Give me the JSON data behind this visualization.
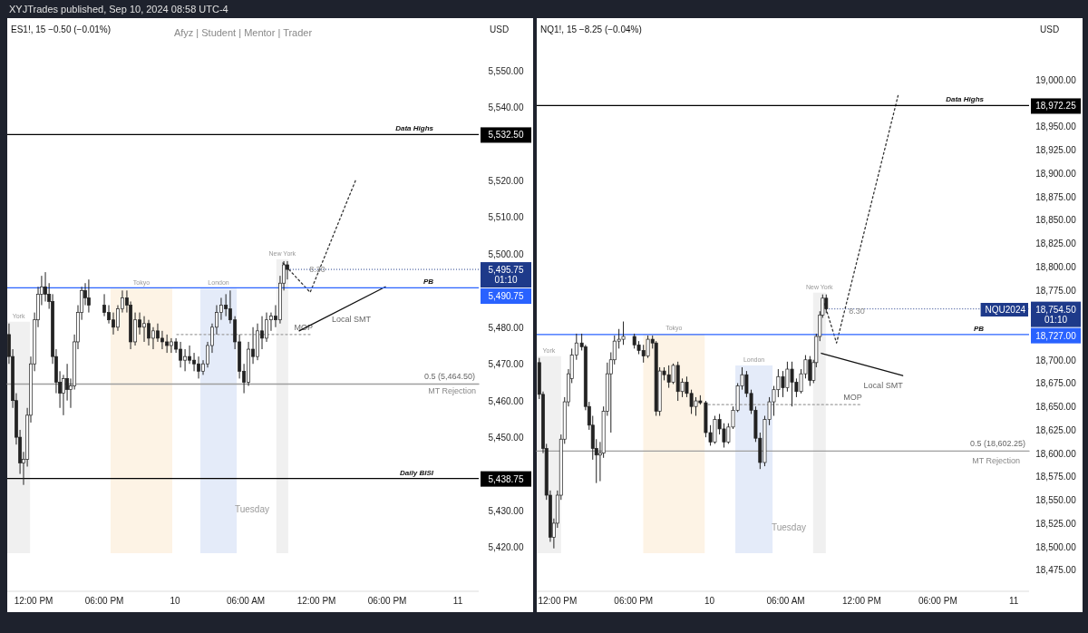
{
  "chart_data": [
    {
      "type": "candlestick",
      "title": "ES1!, 15  −0.50 (−0.01%)",
      "subtitle": "Afyz | Student | Mentor | Trader",
      "ylabel": "USD",
      "xlim": [
        "2024-09-09T09:46",
        "2024-09-11T01:46"
      ],
      "ylim": [
        5408.5,
        5563.75
      ],
      "xticks": [
        {
          "value": "2024-09-09T12:00",
          "label": "12:00 PM"
        },
        {
          "value": "2024-09-09T18:00",
          "label": "06:00 PM"
        },
        {
          "value": "2024-09-10T00:00",
          "label": "10"
        },
        {
          "value": "2024-09-10T06:00",
          "label": "06:00 AM"
        },
        {
          "value": "2024-09-10T12:00",
          "label": "12:00 PM"
        },
        {
          "value": "2024-09-10T18:00",
          "label": "06:00 PM"
        },
        {
          "value": "2024-09-11T00:00",
          "label": "11"
        }
      ],
      "yticks": [
        {
          "value": 5420,
          "label": "5,420.00"
        },
        {
          "value": 5430,
          "label": "5,430.00"
        },
        {
          "value": 5450,
          "label": "5,450.00"
        },
        {
          "value": 5460,
          "label": "5,460.00"
        },
        {
          "value": 5470,
          "label": "5,470.00"
        },
        {
          "value": 5480,
          "label": "5,480.00"
        },
        {
          "value": 5500,
          "label": "5,500.00"
        },
        {
          "value": 5510,
          "label": "5,510.00"
        },
        {
          "value": 5520,
          "label": "5,520.00"
        },
        {
          "value": 5540,
          "label": "5,540.00"
        },
        {
          "value": 5550,
          "label": "5,550.00"
        }
      ],
      "x": [
        "2024-09-09T09:55",
        "2024-09-09T10:14",
        "2024-09-09T10:32",
        "2024-09-09T10:51",
        "2024-09-09T11:09",
        "2024-09-09T11:28",
        "2024-09-09T11:46",
        "2024-09-09T12:05",
        "2024-09-09T12:23",
        "2024-09-09T12:41",
        "2024-09-09T13:00",
        "2024-09-09T13:19",
        "2024-09-09T13:37",
        "2024-09-09T13:55",
        "2024-09-09T14:14",
        "2024-09-09T14:32",
        "2024-09-09T14:51",
        "2024-09-09T15:09",
        "2024-09-09T15:28",
        "2024-09-09T15:46",
        "2024-09-09T16:05",
        "2024-09-09T16:23",
        "2024-09-09T16:41",
        "2024-09-09T18:00",
        "2024-09-09T18:23",
        "2024-09-09T18:46",
        "2024-09-09T19:09",
        "2024-09-09T19:32",
        "2024-09-09T19:55",
        "2024-09-09T20:14",
        "2024-09-09T20:37",
        "2024-09-09T21:00",
        "2024-09-09T21:23",
        "2024-09-09T21:46",
        "2024-09-09T22:09",
        "2024-09-09T22:32",
        "2024-09-09T22:55",
        "2024-09-09T23:19",
        "2024-09-09T23:41",
        "2024-09-10T00:05",
        "2024-09-10T00:28",
        "2024-09-10T00:51",
        "2024-09-10T01:14",
        "2024-09-10T01:37",
        "2024-09-10T02:00",
        "2024-09-10T02:23",
        "2024-09-10T02:46",
        "2024-09-10T03:09",
        "2024-09-10T03:32",
        "2024-09-10T03:55",
        "2024-09-10T04:19",
        "2024-09-10T04:41",
        "2024-09-10T05:05",
        "2024-09-10T05:28",
        "2024-09-10T05:51",
        "2024-09-10T06:14",
        "2024-09-10T06:37",
        "2024-09-10T07:00",
        "2024-09-10T07:23",
        "2024-09-10T07:46",
        "2024-09-10T08:09",
        "2024-09-10T08:32",
        "2024-09-10T08:55",
        "2024-09-10T09:14",
        "2024-09-10T09:32"
      ],
      "ohlc": [
        [
          5478,
          5481,
          5470,
          5472
        ],
        [
          5472,
          5474,
          5458,
          5460
        ],
        [
          5460,
          5462,
          5448,
          5450
        ],
        [
          5450,
          5452,
          5440,
          5443
        ],
        [
          5443,
          5446,
          5437,
          5444
        ],
        [
          5444,
          5458,
          5442,
          5456
        ],
        [
          5456,
          5472,
          5454,
          5470
        ],
        [
          5470,
          5484,
          5468,
          5482
        ],
        [
          5482,
          5491,
          5480,
          5489
        ],
        [
          5489,
          5494,
          5486,
          5491
        ],
        [
          5491,
          5495,
          5487,
          5489
        ],
        [
          5489,
          5492,
          5485,
          5487
        ],
        [
          5487,
          5489,
          5470,
          5472
        ],
        [
          5472,
          5474,
          5462,
          5465
        ],
        [
          5465,
          5468,
          5458,
          5462
        ],
        [
          5462,
          5467,
          5456,
          5466
        ],
        [
          5466,
          5470,
          5460,
          5463
        ],
        [
          5463,
          5466,
          5458,
          5464
        ],
        [
          5464,
          5478,
          5463,
          5476
        ],
        [
          5476,
          5486,
          5474,
          5484
        ],
        [
          5484,
          5491,
          5482,
          5490
        ],
        [
          5490,
          5492,
          5486,
          5488
        ],
        [
          5488,
          5493,
          5484,
          5486
        ],
        [
          5486,
          5489,
          5483,
          5484
        ],
        [
          5484,
          5486,
          5481,
          5482
        ],
        [
          5482,
          5484,
          5478,
          5480
        ],
        [
          5480,
          5486,
          5479,
          5485
        ],
        [
          5485,
          5490,
          5484,
          5488
        ],
        [
          5488,
          5490,
          5484,
          5486
        ],
        [
          5486,
          5487,
          5474,
          5476
        ],
        [
          5476,
          5484,
          5475,
          5482
        ],
        [
          5482,
          5484,
          5478,
          5480
        ],
        [
          5480,
          5483,
          5476,
          5481
        ],
        [
          5481,
          5482,
          5475,
          5477
        ],
        [
          5477,
          5480,
          5474,
          5479
        ],
        [
          5479,
          5481,
          5476,
          5477
        ],
        [
          5477,
          5479,
          5474,
          5476
        ],
        [
          5476,
          5478,
          5473,
          5475
        ],
        [
          5475,
          5477,
          5473,
          5476
        ],
        [
          5476,
          5477,
          5473,
          5474
        ],
        [
          5474,
          5476,
          5469,
          5471
        ],
        [
          5471,
          5474,
          5468,
          5472
        ],
        [
          5472,
          5475,
          5470,
          5471
        ],
        [
          5471,
          5473,
          5468,
          5470
        ],
        [
          5470,
          5472,
          5466,
          5468
        ],
        [
          5468,
          5471,
          5467,
          5470
        ],
        [
          5470,
          5476,
          5469,
          5475
        ],
        [
          5475,
          5481,
          5473,
          5480
        ],
        [
          5480,
          5486,
          5478,
          5484
        ],
        [
          5484,
          5488,
          5482,
          5486
        ],
        [
          5486,
          5489,
          5483,
          5485
        ],
        [
          5485,
          5490,
          5481,
          5482
        ],
        [
          5482,
          5483,
          5474,
          5476
        ],
        [
          5476,
          5478,
          5466,
          5468
        ],
        [
          5468,
          5470,
          5462,
          5465
        ],
        [
          5465,
          5476,
          5464,
          5474
        ],
        [
          5474,
          5480,
          5470,
          5472
        ],
        [
          5472,
          5481,
          5471,
          5479
        ],
        [
          5479,
          5483,
          5474,
          5477
        ],
        [
          5477,
          5484,
          5476,
          5482
        ],
        [
          5482,
          5484,
          5479,
          5483
        ],
        [
          5483,
          5486,
          5480,
          5482
        ],
        [
          5482,
          5494,
          5481,
          5492
        ],
        [
          5492,
          5498,
          5490,
          5497
        ],
        [
          5497,
          5498,
          5493,
          5495.75
        ]
      ],
      "series": [
        {
          "type": "line",
          "name": "0.5 (5,464.50)",
          "color": "#9e9e9e",
          "x": [
            "2024-09-09T09:46",
            "2024-09-11T01:46"
          ],
          "values": [
            5464.5,
            5464.5
          ]
        },
        {
          "type": "line",
          "name": "MOP",
          "color": "#9e9e9e",
          "line_style": "dotted",
          "x": [
            "2024-09-10T00:09",
            "2024-09-10T11:41"
          ],
          "values": [
            5478,
            5478
          ]
        },
        {
          "type": "line",
          "name": "Local SMT",
          "color": "#111111",
          "x": [
            "2024-09-10T10:32",
            "2024-09-10T17:51"
          ],
          "values": [
            5479,
            5491
          ]
        },
        {
          "type": "line",
          "color": "#333333",
          "line_style": "dotted",
          "x": [
            "2024-09-10T09:09",
            "2024-09-10T11:28",
            "2024-09-10T15:19"
          ],
          "values": [
            5497.5,
            5489.5,
            5520
          ]
        }
      ],
      "ref_lines": [
        {
          "axis": "y",
          "value": 5532.5,
          "label": "Data Highs",
          "color": "#000000"
        },
        {
          "axis": "y",
          "value": 5490.75,
          "label": "PB",
          "color": "#2962ff"
        },
        {
          "axis": "y",
          "value": 5438.75,
          "label": "Daily BISI",
          "color": "#000000"
        }
      ],
      "bands": [
        {
          "axis": "x",
          "from": "2024-09-09T09:46",
          "to": "2024-09-09T11:42",
          "label": "York",
          "color": "#ececec"
        },
        {
          "axis": "x",
          "from": "2024-09-09T18:32",
          "to": "2024-09-09T23:46",
          "label": "Tokyo",
          "color": "#fdf0de"
        },
        {
          "axis": "x",
          "from": "2024-09-10T02:09",
          "to": "2024-09-10T05:14",
          "label": "London",
          "color": "#dde6f8"
        },
        {
          "axis": "x",
          "from": "2024-09-10T08:36",
          "to": "2024-09-10T09:36",
          "label": "New York",
          "color": "#ececec"
        }
      ],
      "annotations": [
        "XYJTrades published, Sep 10, 2024 08:58 UTC-4",
        "8.30",
        "MT Rejection",
        "Tuesday",
        {
          "text": "5,532.50",
          "x": "2024-09-11T01:46",
          "y": 5532.5
        },
        {
          "text": "5,490.75",
          "x": "2024-09-11T01:46",
          "y": 5490.75
        },
        {
          "text": "5,438.75",
          "x": "2024-09-11T01:46",
          "y": 5438.75
        },
        {
          "text": "5,495.75 01:10",
          "x": "2024-09-10T09:32",
          "y": 5495.75
        }
      ]
    },
    {
      "type": "candlestick",
      "title": "NQ1!, 15  −8.25 (−0.04%)",
      "ylabel": "USD",
      "xlim": [
        "2024-09-09T10:22",
        "2024-09-11T01:12"
      ],
      "ylim": [
        18454,
        19064
      ],
      "xticks": [
        {
          "value": "2024-09-09T12:00",
          "label": "12:00 PM"
        },
        {
          "value": "2024-09-09T18:00",
          "label": "06:00 PM"
        },
        {
          "value": "2024-09-10T00:00",
          "label": "10"
        },
        {
          "value": "2024-09-10T06:00",
          "label": "06:00 AM"
        },
        {
          "value": "2024-09-10T12:00",
          "label": "12:00 PM"
        },
        {
          "value": "2024-09-10T18:00",
          "label": "06:00 PM"
        },
        {
          "value": "2024-09-11T00:00",
          "label": "11"
        }
      ],
      "yticks": [
        {
          "value": 18475,
          "label": "18,475.00"
        },
        {
          "value": 18500,
          "label": "18,500.00"
        },
        {
          "value": 18525,
          "label": "18,525.00"
        },
        {
          "value": 18550,
          "label": "18,550.00"
        },
        {
          "value": 18575,
          "label": "18,575.00"
        },
        {
          "value": 18600,
          "label": "18,600.00"
        },
        {
          "value": 18625,
          "label": "18,625.00"
        },
        {
          "value": 18650,
          "label": "18,650.00"
        },
        {
          "value": 18675,
          "label": "18,675.00"
        },
        {
          "value": 18700,
          "label": "18,700.00"
        },
        {
          "value": 18775,
          "label": "18,775.00"
        },
        {
          "value": 18800,
          "label": "18,800.00"
        },
        {
          "value": 18825,
          "label": "18,825.00"
        },
        {
          "value": 18850,
          "label": "18,850.00"
        },
        {
          "value": 18875,
          "label": "18,875.00"
        },
        {
          "value": 18900,
          "label": "18,900.00"
        },
        {
          "value": 18925,
          "label": "18,925.00"
        },
        {
          "value": 18950,
          "label": "18,950.00"
        },
        {
          "value": 19000,
          "label": "19,000.00"
        }
      ],
      "x": [
        "2024-09-09T10:34",
        "2024-09-09T10:52",
        "2024-09-09T11:08",
        "2024-09-09T11:26",
        "2024-09-09T11:43",
        "2024-09-09T12:00",
        "2024-09-09T12:17",
        "2024-09-09T12:34",
        "2024-09-09T12:52",
        "2024-09-09T13:08",
        "2024-09-09T13:30",
        "2024-09-09T13:55",
        "2024-09-09T14:13",
        "2024-09-09T14:30",
        "2024-09-09T14:47",
        "2024-09-09T15:04",
        "2024-09-09T15:22",
        "2024-09-09T15:38",
        "2024-09-09T15:56",
        "2024-09-09T16:13",
        "2024-09-09T16:30",
        "2024-09-09T16:51",
        "2024-09-09T17:12",
        "2024-09-09T18:04",
        "2024-09-09T18:25",
        "2024-09-09T18:47",
        "2024-09-09T19:08",
        "2024-09-09T19:30",
        "2024-09-09T19:47",
        "2024-09-09T20:04",
        "2024-09-09T20:25",
        "2024-09-09T20:47",
        "2024-09-09T21:08",
        "2024-09-09T21:30",
        "2024-09-09T21:51",
        "2024-09-09T22:12",
        "2024-09-09T22:34",
        "2024-09-09T22:55",
        "2024-09-09T23:16",
        "2024-09-09T23:42",
        "2024-09-10T00:04",
        "2024-09-10T00:25",
        "2024-09-10T00:47",
        "2024-09-10T01:08",
        "2024-09-10T01:29",
        "2024-09-10T01:51",
        "2024-09-10T02:13",
        "2024-09-10T02:34",
        "2024-09-10T02:55",
        "2024-09-10T03:17",
        "2024-09-10T03:38",
        "2024-09-10T03:59",
        "2024-09-10T04:21",
        "2024-09-10T04:43",
        "2024-09-10T05:04",
        "2024-09-10T05:25",
        "2024-09-10T05:47",
        "2024-09-10T06:08",
        "2024-09-10T06:30",
        "2024-09-10T06:51",
        "2024-09-10T07:13",
        "2024-09-10T07:34",
        "2024-09-10T07:55",
        "2024-09-10T08:12",
        "2024-09-10T08:25",
        "2024-09-10T08:42",
        "2024-09-10T08:55",
        "2024-09-10T09:12"
      ],
      "ohlc": [
        [
          18697,
          18702,
          18658,
          18663
        ],
        [
          18663,
          18666,
          18600,
          18605
        ],
        [
          18605,
          18610,
          18550,
          18555
        ],
        [
          18555,
          18560,
          18505,
          18510
        ],
        [
          18510,
          18530,
          18498,
          18525
        ],
        [
          18525,
          18560,
          18520,
          18555
        ],
        [
          18555,
          18620,
          18550,
          18615
        ],
        [
          18615,
          18660,
          18610,
          18655
        ],
        [
          18655,
          18690,
          18650,
          18685
        ],
        [
          18680,
          18712,
          18675,
          18705
        ],
        [
          18705,
          18728,
          18700,
          18718
        ],
        [
          18718,
          18728,
          18710,
          18714
        ],
        [
          18714,
          18716,
          18646,
          18650
        ],
        [
          18650,
          18655,
          18625,
          18630
        ],
        [
          18630,
          18640,
          18593,
          18605
        ],
        [
          18605,
          18615,
          18568,
          18598
        ],
        [
          18598,
          18612,
          18570,
          18600
        ],
        [
          18600,
          18650,
          18595,
          18645
        ],
        [
          18645,
          18697,
          18640,
          18685
        ],
        [
          18685,
          18708,
          18622,
          18700
        ],
        [
          18700,
          18726,
          18695,
          18720
        ],
        [
          18720,
          18733,
          18712,
          18722
        ],
        [
          18722,
          18741,
          18716,
          18725
        ],
        [
          18725,
          18728,
          18712,
          18716
        ],
        [
          18716,
          18720,
          18706,
          18710
        ],
        [
          18710,
          18716,
          18697,
          18704
        ],
        [
          18704,
          18726,
          18702,
          18722
        ],
        [
          18722,
          18726,
          18712,
          18718
        ],
        [
          18718,
          18720,
          18640,
          18645
        ],
        [
          18645,
          18692,
          18640,
          18688
        ],
        [
          18688,
          18692,
          18678,
          18684
        ],
        [
          18684,
          18694,
          18670,
          18676
        ],
        [
          18676,
          18696,
          18674,
          18694
        ],
        [
          18694,
          18698,
          18656,
          18666
        ],
        [
          18666,
          18680,
          18660,
          18676
        ],
        [
          18676,
          18682,
          18660,
          18664
        ],
        [
          18664,
          18668,
          18642,
          18650
        ],
        [
          18650,
          18660,
          18640,
          18656
        ],
        [
          18656,
          18662,
          18652,
          18654
        ],
        [
          18654,
          18656,
          18617,
          18622
        ],
        [
          18622,
          18630,
          18608,
          18612
        ],
        [
          18612,
          18640,
          18610,
          18636
        ],
        [
          18636,
          18642,
          18620,
          18626
        ],
        [
          18626,
          18632,
          18606,
          18612
        ],
        [
          18612,
          18632,
          18610,
          18628
        ],
        [
          18628,
          18650,
          18626,
          18646
        ],
        [
          18646,
          18675,
          18644,
          18672
        ],
        [
          18672,
          18692,
          18668,
          18684
        ],
        [
          18684,
          18688,
          18660,
          18664
        ],
        [
          18664,
          18668,
          18642,
          18646
        ],
        [
          18646,
          18650,
          18612,
          18616
        ],
        [
          18616,
          18622,
          18583,
          18590
        ],
        [
          18590,
          18640,
          18586,
          18636
        ],
        [
          18636,
          18660,
          18630,
          18655
        ],
        [
          18655,
          18672,
          18640,
          18668
        ],
        [
          18668,
          18690,
          18660,
          18682
        ],
        [
          18682,
          18688,
          18660,
          18670
        ],
        [
          18670,
          18698,
          18666,
          18690
        ],
        [
          18690,
          18698,
          18650,
          18676
        ],
        [
          18676,
          18680,
          18660,
          18666
        ],
        [
          18666,
          18690,
          18664,
          18685
        ],
        [
          18685,
          18705,
          18680,
          18700
        ],
        [
          18700,
          18704,
          18672,
          18678
        ],
        [
          18678,
          18700,
          18675,
          18697
        ],
        [
          18697,
          18728,
          18692,
          18725
        ],
        [
          18725,
          18752,
          18720,
          18748
        ],
        [
          18748,
          18770,
          18745,
          18766
        ],
        [
          18766,
          18770,
          18750,
          18754.5
        ]
      ],
      "series": [
        {
          "type": "line",
          "name": "0.5 (18,602.25)",
          "color": "#9e9e9e",
          "x": [
            "2024-09-09T10:22",
            "2024-09-11T01:12"
          ],
          "values": [
            18602.25,
            18602.25
          ]
        },
        {
          "type": "line",
          "name": "MOP",
          "color": "#9e9e9e",
          "line_style": "dotted",
          "x": [
            "2024-09-09T23:54",
            "2024-09-10T12:01"
          ],
          "values": [
            18652,
            18652
          ]
        },
        {
          "type": "line",
          "name": "Local SMT",
          "color": "#111111",
          "x": [
            "2024-09-10T08:49",
            "2024-09-10T15:14"
          ],
          "values": [
            18707,
            18683
          ]
        },
        {
          "type": "line",
          "color": "#333333",
          "line_style": "dotted",
          "x": [
            "2024-09-10T08:57",
            "2024-09-10T10:01",
            "2024-09-10T14:52"
          ],
          "values": [
            18765,
            18718,
            18983
          ]
        }
      ],
      "ref_lines": [
        {
          "axis": "y",
          "value": 18972.25,
          "label": "Data Highs",
          "color": "#000000"
        },
        {
          "axis": "y",
          "value": 18727,
          "label": "PB",
          "color": "#2962ff"
        }
      ],
      "bands": [
        {
          "axis": "x",
          "from": "2024-09-09T10:22",
          "to": "2024-09-09T12:17",
          "label": "York",
          "color": "#ececec"
        },
        {
          "axis": "x",
          "from": "2024-09-09T18:46",
          "to": "2024-09-09T23:37",
          "label": "Tokyo",
          "color": "#fdf0de"
        },
        {
          "axis": "x",
          "from": "2024-09-10T02:02",
          "to": "2024-09-10T04:58",
          "label": "London",
          "color": "#dde6f8"
        },
        {
          "axis": "x",
          "from": "2024-09-10T08:10",
          "to": "2024-09-10T09:10",
          "label": "New York",
          "color": "#ececec"
        }
      ],
      "annotations": [
        "8.30",
        "MT Rejection",
        "Tuesday",
        "NQU2024",
        {
          "text": "18,972.25",
          "x": "2024-09-11T01:12",
          "y": 18972.25
        },
        {
          "text": "18,727.00",
          "x": "2024-09-11T01:12",
          "y": 18727
        },
        {
          "text": "18,754.50 01:10",
          "x": "2024-09-10T09:12",
          "y": 18754.5
        }
      ]
    }
  ]
}
